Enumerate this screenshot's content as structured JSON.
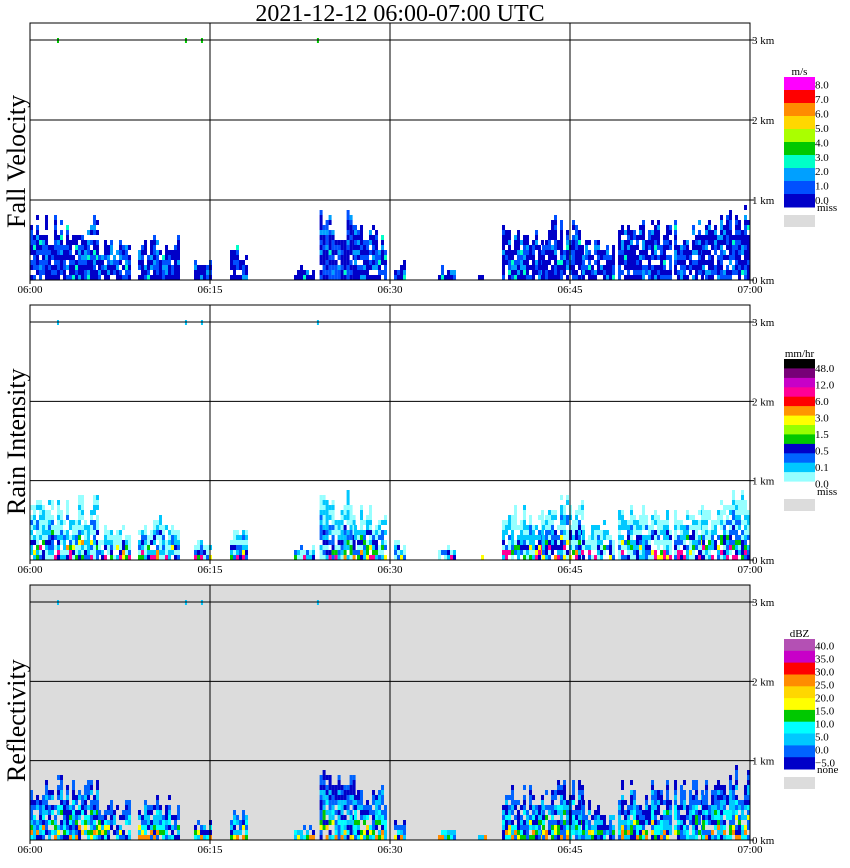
{
  "title": "2021-12-12   06:00-07:00 UTC",
  "chart_data": [
    {
      "type": "heatmap",
      "ylabel": "Fall Velocity",
      "x_ticks": [
        "06:00",
        "06:15",
        "06:30",
        "06:45",
        "07:00"
      ],
      "y_ticks": [
        "0 km",
        "1 km",
        "2 km",
        "3 km"
      ],
      "ylim_km": [
        0,
        3
      ],
      "background": "#ffffff",
      "legend": {
        "unit": "m/s",
        "labels": [
          "8.0",
          "7.0",
          "6.0",
          "5.0",
          "4.0",
          "3.0",
          "2.0",
          "1.0",
          "0.0"
        ],
        "colors": [
          "#ff00ff",
          "#ff0000",
          "#ff8c00",
          "#ffd700",
          "#aaff00",
          "#00c800",
          "#00ffc8",
          "#00a0ff",
          "#0050ff",
          "#0000c8"
        ],
        "miss_label": "miss",
        "miss_color": "#dcdcdc"
      }
    },
    {
      "type": "heatmap",
      "ylabel": "Rain Intensity",
      "x_ticks": [
        "06:00",
        "06:15",
        "06:30",
        "06:45",
        "07:00"
      ],
      "y_ticks": [
        "0 km",
        "1 km",
        "2 km",
        "3 km"
      ],
      "ylim_km": [
        0,
        3
      ],
      "background": "#ffffff",
      "legend": {
        "unit": "mm/hr",
        "labels": [
          "48.0",
          "12.0",
          "6.0",
          "3.0",
          "1.5",
          "0.5",
          "0.1",
          "0.0"
        ],
        "colors": [
          "#000000",
          "#780078",
          "#c800c8",
          "#ff0096",
          "#ff0000",
          "#ff9600",
          "#ffff00",
          "#96ff00",
          "#00c800",
          "#0000c8",
          "#0064ff",
          "#00c8ff",
          "#96ffff",
          "#ffffff"
        ],
        "miss_label": "miss",
        "miss_color": "#dcdcdc"
      }
    },
    {
      "type": "heatmap",
      "ylabel": "Reflectivity",
      "x_ticks": [
        "06:00",
        "06:15",
        "06:30",
        "06:45",
        "07:00"
      ],
      "y_ticks": [
        "0 km",
        "1 km",
        "2 km",
        "3 km"
      ],
      "ylim_km": [
        0,
        3
      ],
      "background": "#dcdcdc",
      "legend": {
        "unit": "dBZ",
        "labels": [
          "40.0",
          "35.0",
          "30.0",
          "25.0",
          "20.0",
          "15.0",
          "10.0",
          "5.0",
          "0.0",
          "−5.0"
        ],
        "colors": [
          "#b450b4",
          "#c800c8",
          "#ff0000",
          "#ff8c00",
          "#ffd700",
          "#ffff00",
          "#00c800",
          "#00ffff",
          "#00c8ff",
          "#0064ff",
          "#0000c8"
        ],
        "miss_label": "none",
        "miss_color": "#dcdcdc"
      }
    }
  ]
}
